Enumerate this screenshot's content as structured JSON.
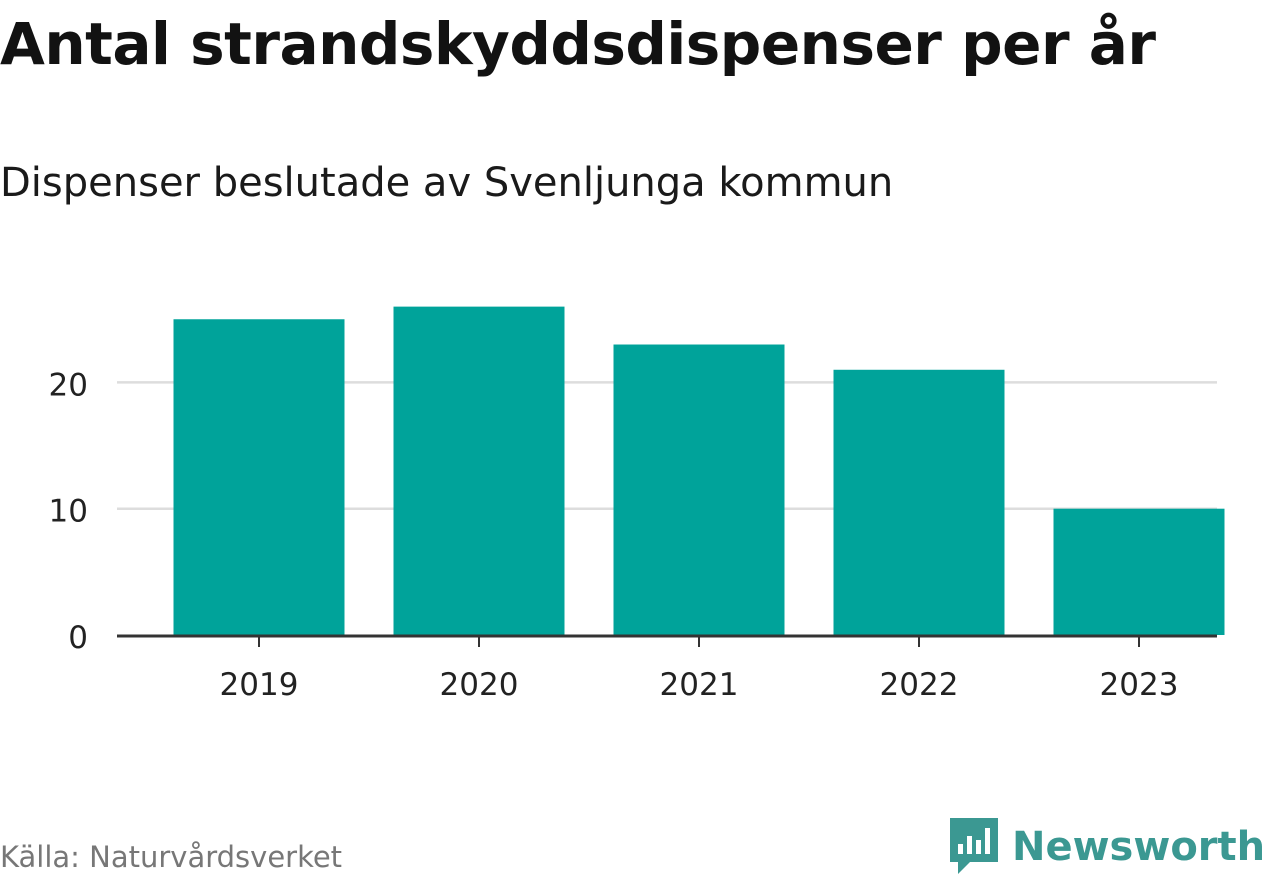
{
  "chart_data": {
    "type": "bar",
    "title": "Antal strandskyddsdispenser per år",
    "subtitle": "Dispenser beslutade av Svenljunga kommun",
    "categories": [
      "2019",
      "2020",
      "2021",
      "2022",
      "2023"
    ],
    "values": [
      25,
      26,
      23,
      21,
      10
    ],
    "yticks": [
      0,
      10,
      20
    ],
    "ylim": [
      0,
      26
    ],
    "xlabel": "",
    "ylabel": "",
    "grid": true,
    "bar_color": "#00a39a"
  },
  "footer": {
    "source": "Källa: Naturvårdsverket",
    "brand": "Newsworthy",
    "brand_icon": "bar-chart-speech-bubble-icon",
    "brand_color": "#3b9892"
  }
}
